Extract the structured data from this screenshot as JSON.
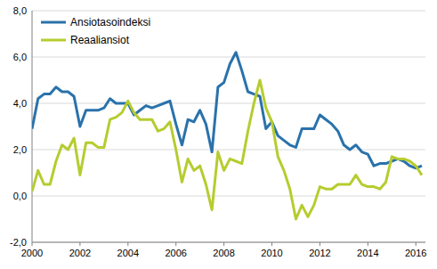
{
  "chart_data": {
    "type": "line",
    "legend": "top-left",
    "grid": true,
    "x": [
      2000,
      2000.25,
      2000.5,
      2000.75,
      2001,
      2001.25,
      2001.5,
      2001.75,
      2002,
      2002.25,
      2002.5,
      2002.75,
      2003,
      2003.25,
      2003.5,
      2003.75,
      2004,
      2004.25,
      2004.5,
      2004.75,
      2005,
      2005.25,
      2005.5,
      2005.75,
      2006,
      2006.25,
      2006.5,
      2006.75,
      2007,
      2007.25,
      2007.5,
      2007.75,
      2008,
      2008.25,
      2008.5,
      2008.75,
      2009,
      2009.25,
      2009.5,
      2009.75,
      2010,
      2010.25,
      2010.5,
      2010.75,
      2011,
      2011.25,
      2011.5,
      2011.75,
      2012,
      2012.25,
      2012.5,
      2012.75,
      2013,
      2013.25,
      2013.5,
      2013.75,
      2014,
      2014.25,
      2014.5,
      2014.75,
      2015,
      2015.25,
      2015.5,
      2015.75,
      2016,
      2016.25
    ],
    "xlim": [
      2000,
      2016.4
    ],
    "xticks": [
      2000,
      2002,
      2004,
      2006,
      2008,
      2010,
      2012,
      2014,
      2016
    ],
    "ylim": [
      -2,
      8
    ],
    "yticks": [
      {
        "value": -2,
        "label": "-2,0"
      },
      {
        "value": 0,
        "label": "0,0"
      },
      {
        "value": 2,
        "label": "2,0"
      },
      {
        "value": 4,
        "label": "4,0"
      },
      {
        "value": 6,
        "label": "6,0"
      },
      {
        "value": 8,
        "label": "8,0"
      }
    ],
    "series": [
      {
        "name": "Ansiotasoindeksi",
        "color": "#2a72ab",
        "values": [
          2.9,
          4.2,
          4.4,
          4.4,
          4.7,
          4.5,
          4.5,
          4.3,
          3.0,
          3.7,
          3.7,
          3.7,
          3.8,
          4.2,
          4.0,
          4.0,
          4.0,
          3.5,
          3.7,
          3.9,
          3.8,
          3.9,
          4.0,
          4.1,
          3.1,
          2.2,
          3.3,
          3.2,
          3.7,
          3.1,
          1.9,
          4.7,
          4.9,
          5.7,
          6.2,
          5.4,
          4.5,
          4.4,
          4.3,
          2.9,
          3.2,
          2.6,
          2.4,
          2.2,
          2.1,
          2.9,
          2.9,
          2.9,
          3.5,
          3.3,
          3.1,
          2.8,
          2.2,
          2.0,
          2.2,
          1.9,
          1.8,
          1.3,
          1.4,
          1.4,
          1.5,
          1.6,
          1.5,
          1.3,
          1.2,
          1.3
        ]
      },
      {
        "name": "Reaaliansiot",
        "color": "#b6cc2f",
        "values": [
          0.2,
          1.1,
          0.5,
          0.5,
          1.5,
          2.2,
          2.0,
          2.5,
          0.9,
          2.3,
          2.3,
          2.1,
          2.1,
          3.3,
          3.4,
          3.6,
          4.1,
          3.6,
          3.3,
          3.3,
          3.3,
          2.8,
          2.9,
          3.2,
          2.0,
          0.6,
          1.6,
          1.1,
          1.3,
          0.5,
          -0.6,
          1.9,
          1.1,
          1.6,
          1.5,
          1.4,
          2.8,
          4.0,
          5.0,
          3.8,
          3.2,
          1.7,
          1.1,
          0.3,
          -1.0,
          -0.4,
          -0.9,
          -0.4,
          0.4,
          0.3,
          0.3,
          0.5,
          0.5,
          0.5,
          0.9,
          0.5,
          0.4,
          0.4,
          0.3,
          0.6,
          1.7,
          1.6,
          1.6,
          1.5,
          1.3,
          0.9
        ]
      }
    ]
  }
}
